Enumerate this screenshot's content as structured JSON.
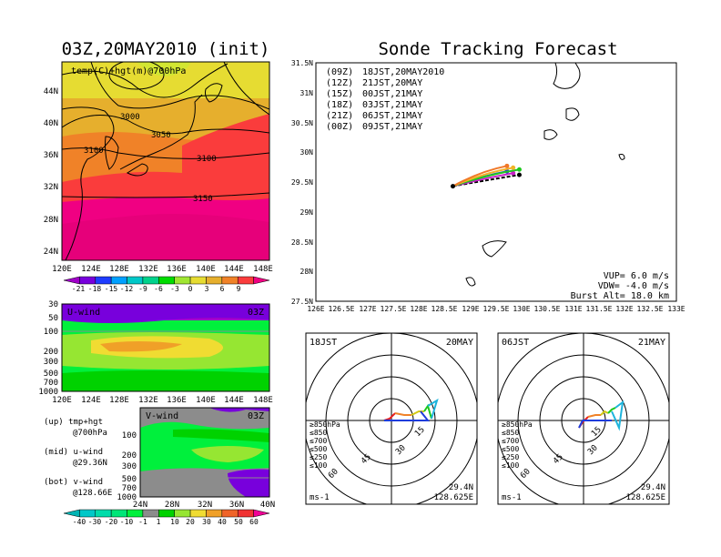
{
  "left_title": "03Z,20MAY2010 (init)",
  "main_title": "Sonde Tracking Forecast",
  "map_panel": {
    "label": "temp(C)+hgt(m)@700hPa",
    "contour_labels": [
      "3000",
      "3050",
      "3100",
      "3100",
      "3150"
    ],
    "lat_ticks": [
      "44N",
      "40N",
      "36N",
      "32N",
      "28N",
      "24N"
    ],
    "lon_ticks": [
      "120E",
      "124E",
      "128E",
      "132E",
      "136E",
      "140E",
      "144E",
      "148E"
    ]
  },
  "temp_colorbar": {
    "labels": [
      "-21",
      "-18",
      "-15",
      "-12",
      "-9",
      "-6",
      "-3",
      "0",
      "3",
      "6",
      "9"
    ],
    "colors": [
      "#a000c8",
      "#7800dc",
      "#1e3cff",
      "#00a0ff",
      "#00c8c8",
      "#00d28c",
      "#00dc00",
      "#a0e632",
      "#e6dc32",
      "#e6af2d",
      "#f08228",
      "#fa3c3c",
      "#f00082"
    ]
  },
  "u_panel": {
    "name": "U-wind",
    "time": "03Z",
    "p_ticks": [
      "30",
      "50",
      "100",
      "200",
      "300",
      "500",
      "700",
      "1000"
    ],
    "lon_ticks": [
      "120E",
      "124E",
      "128E",
      "132E",
      "136E",
      "140E",
      "144E",
      "148E"
    ]
  },
  "v_panel": {
    "name": "V-wind",
    "time": "03Z",
    "p_ticks": [
      "100",
      "200",
      "300",
      "500",
      "700",
      "1000"
    ],
    "lat_ticks": [
      "24N",
      "28N",
      "32N",
      "36N",
      "40N"
    ]
  },
  "legend_notes": {
    "up": "(up) tmp+hgt",
    "up2": "@700hPa",
    "mid": "(mid) u-wind",
    "mid2": "@29.36N",
    "bot": "(bot) v-wind",
    "bot2": "@128.66E"
  },
  "wind_colorbar": {
    "labels": [
      "-40",
      "-30",
      "-20",
      "-10",
      "-1",
      "1",
      "10",
      "20",
      "30",
      "40",
      "50",
      "60"
    ],
    "colors": [
      "#00b4b4",
      "#00c8c8",
      "#00dcaa",
      "#00e678",
      "#00f03c",
      "#8c8c8c",
      "#00d200",
      "#96e632",
      "#f0dc32",
      "#f0a028",
      "#f06428",
      "#f03232",
      "#f00096"
    ]
  },
  "track_panel": {
    "forecasts": [
      {
        "code": "(09Z)",
        "label": "18JST,20MAY2010",
        "color": "#000000"
      },
      {
        "code": "(12Z)",
        "label": "21JST,20MAY",
        "color": "#c81ec8"
      },
      {
        "code": "(15Z)",
        "label": "00JST,21MAY",
        "color": "#1e3cdc"
      },
      {
        "code": "(18Z)",
        "label": "03JST,21MAY",
        "color": "#1ec81e"
      },
      {
        "code": "(21Z)",
        "label": "06JST,21MAY",
        "color": "#f0b428"
      },
      {
        "code": "(00Z)",
        "label": "09JST,21MAY",
        "color": "#f07828"
      }
    ],
    "lat_ticks": [
      "31.5N",
      "31N",
      "30.5N",
      "30N",
      "29.5N",
      "29N",
      "28.5N",
      "28N",
      "27.5N"
    ],
    "lon_ticks": [
      "126E",
      "126.5E",
      "127E",
      "127.5E",
      "128E",
      "128.5E",
      "129E",
      "129.5E",
      "130E",
      "130.5E",
      "131E",
      "131.5E",
      "132E",
      "132.5E",
      "133E"
    ],
    "info": [
      "VUP= 6.0 m/s",
      "VDW= -4.0 m/s",
      "Burst Alt= 18.0 km"
    ],
    "track_points": [
      {
        "lon": 128.66,
        "lat": 29.43,
        "alt": "launch"
      },
      {
        "lon": 129.95,
        "lat": 29.68,
        "alt": "burst"
      }
    ]
  },
  "hodographs": [
    {
      "time": "18JST",
      "date": "20MAY",
      "lat": "29.4N",
      "lon": "128.625E",
      "unit": "ms-1",
      "ring_labels": [
        "15",
        "30",
        "45",
        "60"
      ]
    },
    {
      "time": "06JST",
      "date": "21MAY",
      "lat": "29.4N",
      "lon": "128.625E",
      "unit": "ms-1",
      "ring_labels": [
        "15",
        "30",
        "45",
        "60"
      ]
    }
  ],
  "hodo_legend": [
    {
      "label": "≥850hPa",
      "color": "#e61e1e"
    },
    {
      "label": "≤850",
      "color": "#f08228"
    },
    {
      "label": "≤700",
      "color": "#d2c814"
    },
    {
      "label": "≤500",
      "color": "#1ec81e"
    },
    {
      "label": "≤250",
      "color": "#1eb4dc"
    },
    {
      "label": "≤100",
      "color": "#1e3cdc"
    }
  ]
}
